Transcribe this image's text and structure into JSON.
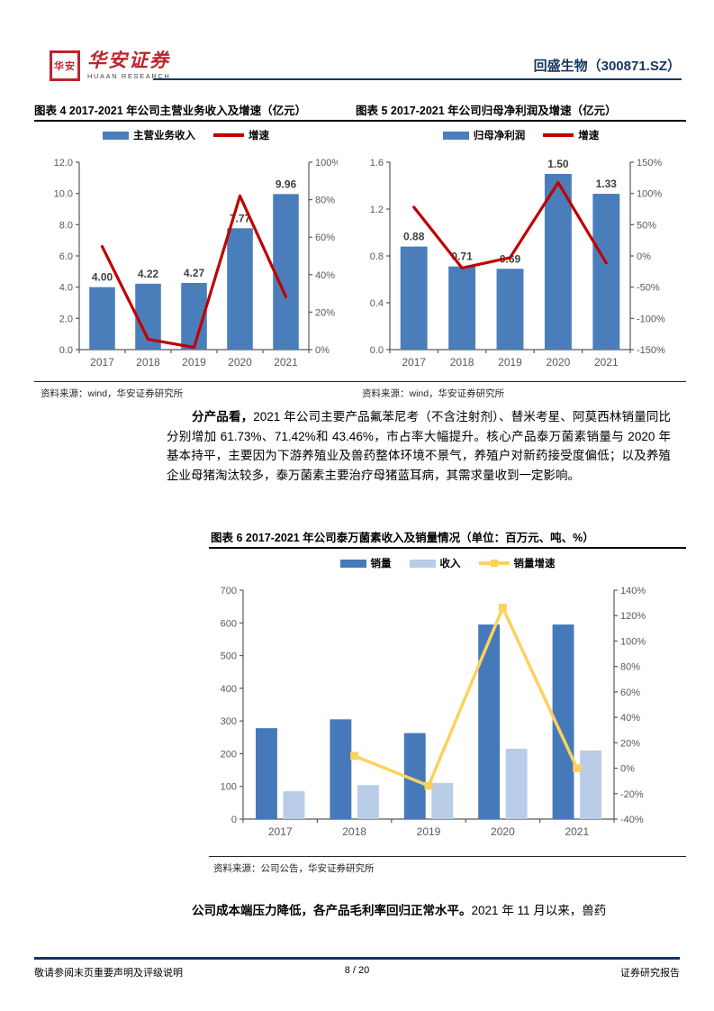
{
  "header": {
    "seal_text": "华安",
    "brand": "华安证券",
    "brand_sub": "HUAAN RESEARCH",
    "stock_title": "回盛生物（300871.SZ）"
  },
  "figure4": {
    "title": "图表 4 2017-2021 年公司主营业务收入及增速（亿元）",
    "source": "资料来源：wind，华安证券研究所"
  },
  "figure5": {
    "title": "图表 5 2017-2021 年公司归母净利润及增速（亿元）",
    "source": "资料来源：wind，华安证券研究所"
  },
  "figure6": {
    "title": "图表 6 2017-2021 年公司泰万菌素收入及销量情况（单位：百万元、吨、%）",
    "source": "资料来源：公司公告，华安证券研究所"
  },
  "paragraph1": {
    "lead": "分产品看，",
    "text": "2021 年公司主要产品氟苯尼考（不含注射剂）、替米考星、阿莫西林销量同比分别增加 61.73%、71.42%和 43.46%，市占率大幅提升。核心产品泰万菌素销量与 2020 年基本持平，主要因为下游养殖业及兽药整体环境不景气，养殖户对新药接受度偏低；以及养殖企业母猪淘汰较多，泰万菌素主要治疗母猪蓝耳病，其需求量收到一定影响。"
  },
  "paragraph2": {
    "lead": "公司成本端压力降低，各产品毛利率回归正常水平。",
    "text": "2021 年 11 月以来，兽药"
  },
  "footer": {
    "left": "敬请参阅末页重要声明及评级说明",
    "center": "8 / 20",
    "right": "证券研究报告"
  },
  "colors": {
    "bar_blue": "#4A7EBB",
    "bar_blue_dark": "#4679B9",
    "bar_light_blue": "#B9CCE8",
    "line_red": "#C00000",
    "line_yellow": "#FBD25F",
    "navy": "#17365D",
    "brand_red": "#C0232C",
    "axis_gray": "#595959"
  },
  "chart_data": [
    {
      "id": "chart4",
      "type": "bar",
      "categories": [
        "2017",
        "2018",
        "2019",
        "2020",
        "2021"
      ],
      "series": [
        {
          "name": "主营业务收入",
          "kind": "bar",
          "axis": "left",
          "color": "#4A7EBB",
          "values": [
            4.0,
            4.22,
            4.27,
            7.77,
            9.96
          ],
          "labels": [
            "4.00",
            "4.22",
            "4.27",
            "7.77",
            "9.96"
          ]
        },
        {
          "name": "增速",
          "kind": "line",
          "axis": "right",
          "color": "#C00000",
          "marker": false,
          "values": [
            55,
            5.5,
            1.2,
            82,
            28.2
          ]
        }
      ],
      "left_axis": {
        "min": 0,
        "max": 12,
        "step": 2,
        "format": "1dp"
      },
      "right_axis": {
        "min": 0,
        "max": 100,
        "step": 20,
        "format": "pct"
      },
      "title": "2017-2021 年公司主营业务收入及增速（亿元）",
      "grid": false,
      "legend_position": "top"
    },
    {
      "id": "chart5",
      "type": "bar",
      "categories": [
        "2017",
        "2018",
        "2019",
        "2020",
        "2021"
      ],
      "series": [
        {
          "name": "归母净利润",
          "kind": "bar",
          "axis": "left",
          "color": "#4A7EBB",
          "values": [
            0.88,
            0.71,
            0.69,
            1.5,
            1.33
          ],
          "labels": [
            "0.88",
            "0.71",
            "0.69",
            "1.50",
            "1.33"
          ]
        },
        {
          "name": "增速",
          "kind": "line",
          "axis": "right",
          "color": "#C00000",
          "marker": false,
          "values": [
            78,
            -19.3,
            -2.8,
            117.4,
            -11.3
          ]
        }
      ],
      "left_axis": {
        "min": 0,
        "max": 1.6,
        "step": 0.4,
        "format": "1dp"
      },
      "right_axis": {
        "min": -150,
        "max": 150,
        "step": 50,
        "format": "pct"
      },
      "title": "2017-2021 年公司归母净利润及增速（亿元）",
      "grid": false,
      "legend_position": "top"
    },
    {
      "id": "chart6",
      "type": "bar",
      "categories": [
        "2017",
        "2018",
        "2019",
        "2020",
        "2021"
      ],
      "series": [
        {
          "name": "销量",
          "kind": "bar",
          "axis": "left",
          "color": "#4679B9",
          "values": [
            278,
            305,
            263,
            595,
            595
          ]
        },
        {
          "name": "收入",
          "kind": "bar",
          "axis": "left",
          "color": "#B9CCE8",
          "values": [
            85,
            104,
            110,
            215,
            210
          ]
        },
        {
          "name": "销量增速",
          "kind": "line",
          "axis": "right",
          "color": "#FBD25F",
          "marker": true,
          "values": [
            null,
            9.7,
            -13.8,
            126.2,
            0.0
          ]
        }
      ],
      "left_axis": {
        "min": 0,
        "max": 700,
        "step": 100,
        "format": "int"
      },
      "right_axis": {
        "min": -40,
        "max": 140,
        "step": 20,
        "format": "pct"
      },
      "title": "2017-2021 年公司泰万菌素收入及销量情况（单位：百万元、吨、%）",
      "grid": false,
      "legend_position": "top"
    }
  ]
}
